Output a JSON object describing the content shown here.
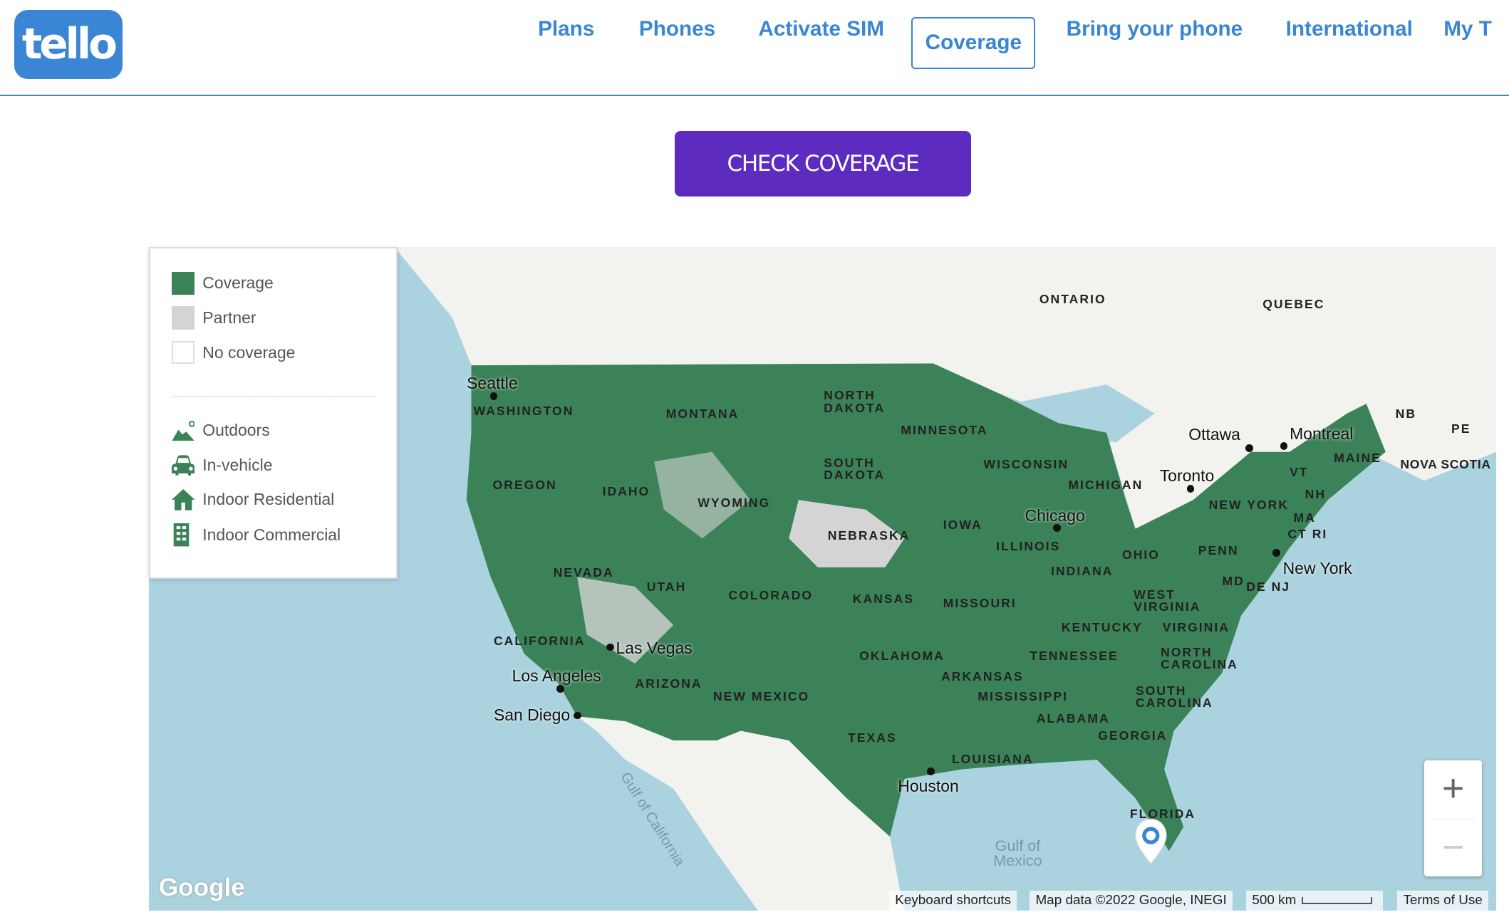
{
  "header": {
    "logo": "tello",
    "nav": [
      "Plans",
      "Phones",
      "Activate SIM",
      "Coverage",
      "Bring your phone",
      "International",
      "My T"
    ],
    "active": "Coverage"
  },
  "cta": {
    "label": "CHECK COVERAGE",
    "color": "#5d2bbf"
  },
  "legend": {
    "types": [
      "Coverage",
      "Partner",
      "No coverage"
    ],
    "modes": [
      "Outdoors",
      "In-vehicle",
      "Indoor Residential",
      "Indoor Commercial"
    ],
    "colors": {
      "coverage": "#3b8258",
      "partner": "#d4d4d4"
    }
  },
  "map": {
    "regions": [
      "ONTARIO",
      "QUEBEC",
      "NB",
      "PE",
      "NOVA SCOTIA",
      "WASHINGTON",
      "MONTANA",
      "NORTH DAKOTA",
      "MINNESOTA",
      "SOUTH DAKOTA",
      "WISCONSIN",
      "MICHIGAN",
      "OREGON",
      "IDAHO",
      "WYOMING",
      "NEBRASKA",
      "IOWA",
      "ILLINOIS",
      "INDIANA",
      "OHIO",
      "PENN",
      "NEW YORK",
      "VT",
      "NH",
      "MAINE",
      "MA",
      "CT RI",
      "MD",
      "DE NJ",
      "NEVADA",
      "UTAH",
      "COLORADO",
      "KANSAS",
      "MISSOURI",
      "WEST VIRGINIA",
      "KENTUCKY",
      "VIRGINIA",
      "CALIFORNIA",
      "OKLAHOMA",
      "ARKANSAS",
      "TENNESSEE",
      "NORTH CAROLINA",
      "ARIZONA",
      "NEW MEXICO",
      "MISSISSIPPI",
      "ALABAMA",
      "SOUTH CAROLINA",
      "GEORGIA",
      "TEXAS",
      "LOUISIANA",
      "FLORIDA"
    ],
    "cities": [
      "Seattle",
      "Ottawa",
      "Montreal",
      "Toronto",
      "Chicago",
      "New York",
      "Las Vegas",
      "Los Angeles",
      "San Diego",
      "Houston"
    ],
    "water": [
      "Gulf of California",
      "Gulf of Mexico"
    ],
    "attribution": [
      "Keyboard shortcuts",
      "Map data ©2022 Google, INEGI",
      "500 km",
      "Terms of Use"
    ],
    "google": "Google",
    "zoom_in": "+",
    "zoom_out": "−"
  }
}
